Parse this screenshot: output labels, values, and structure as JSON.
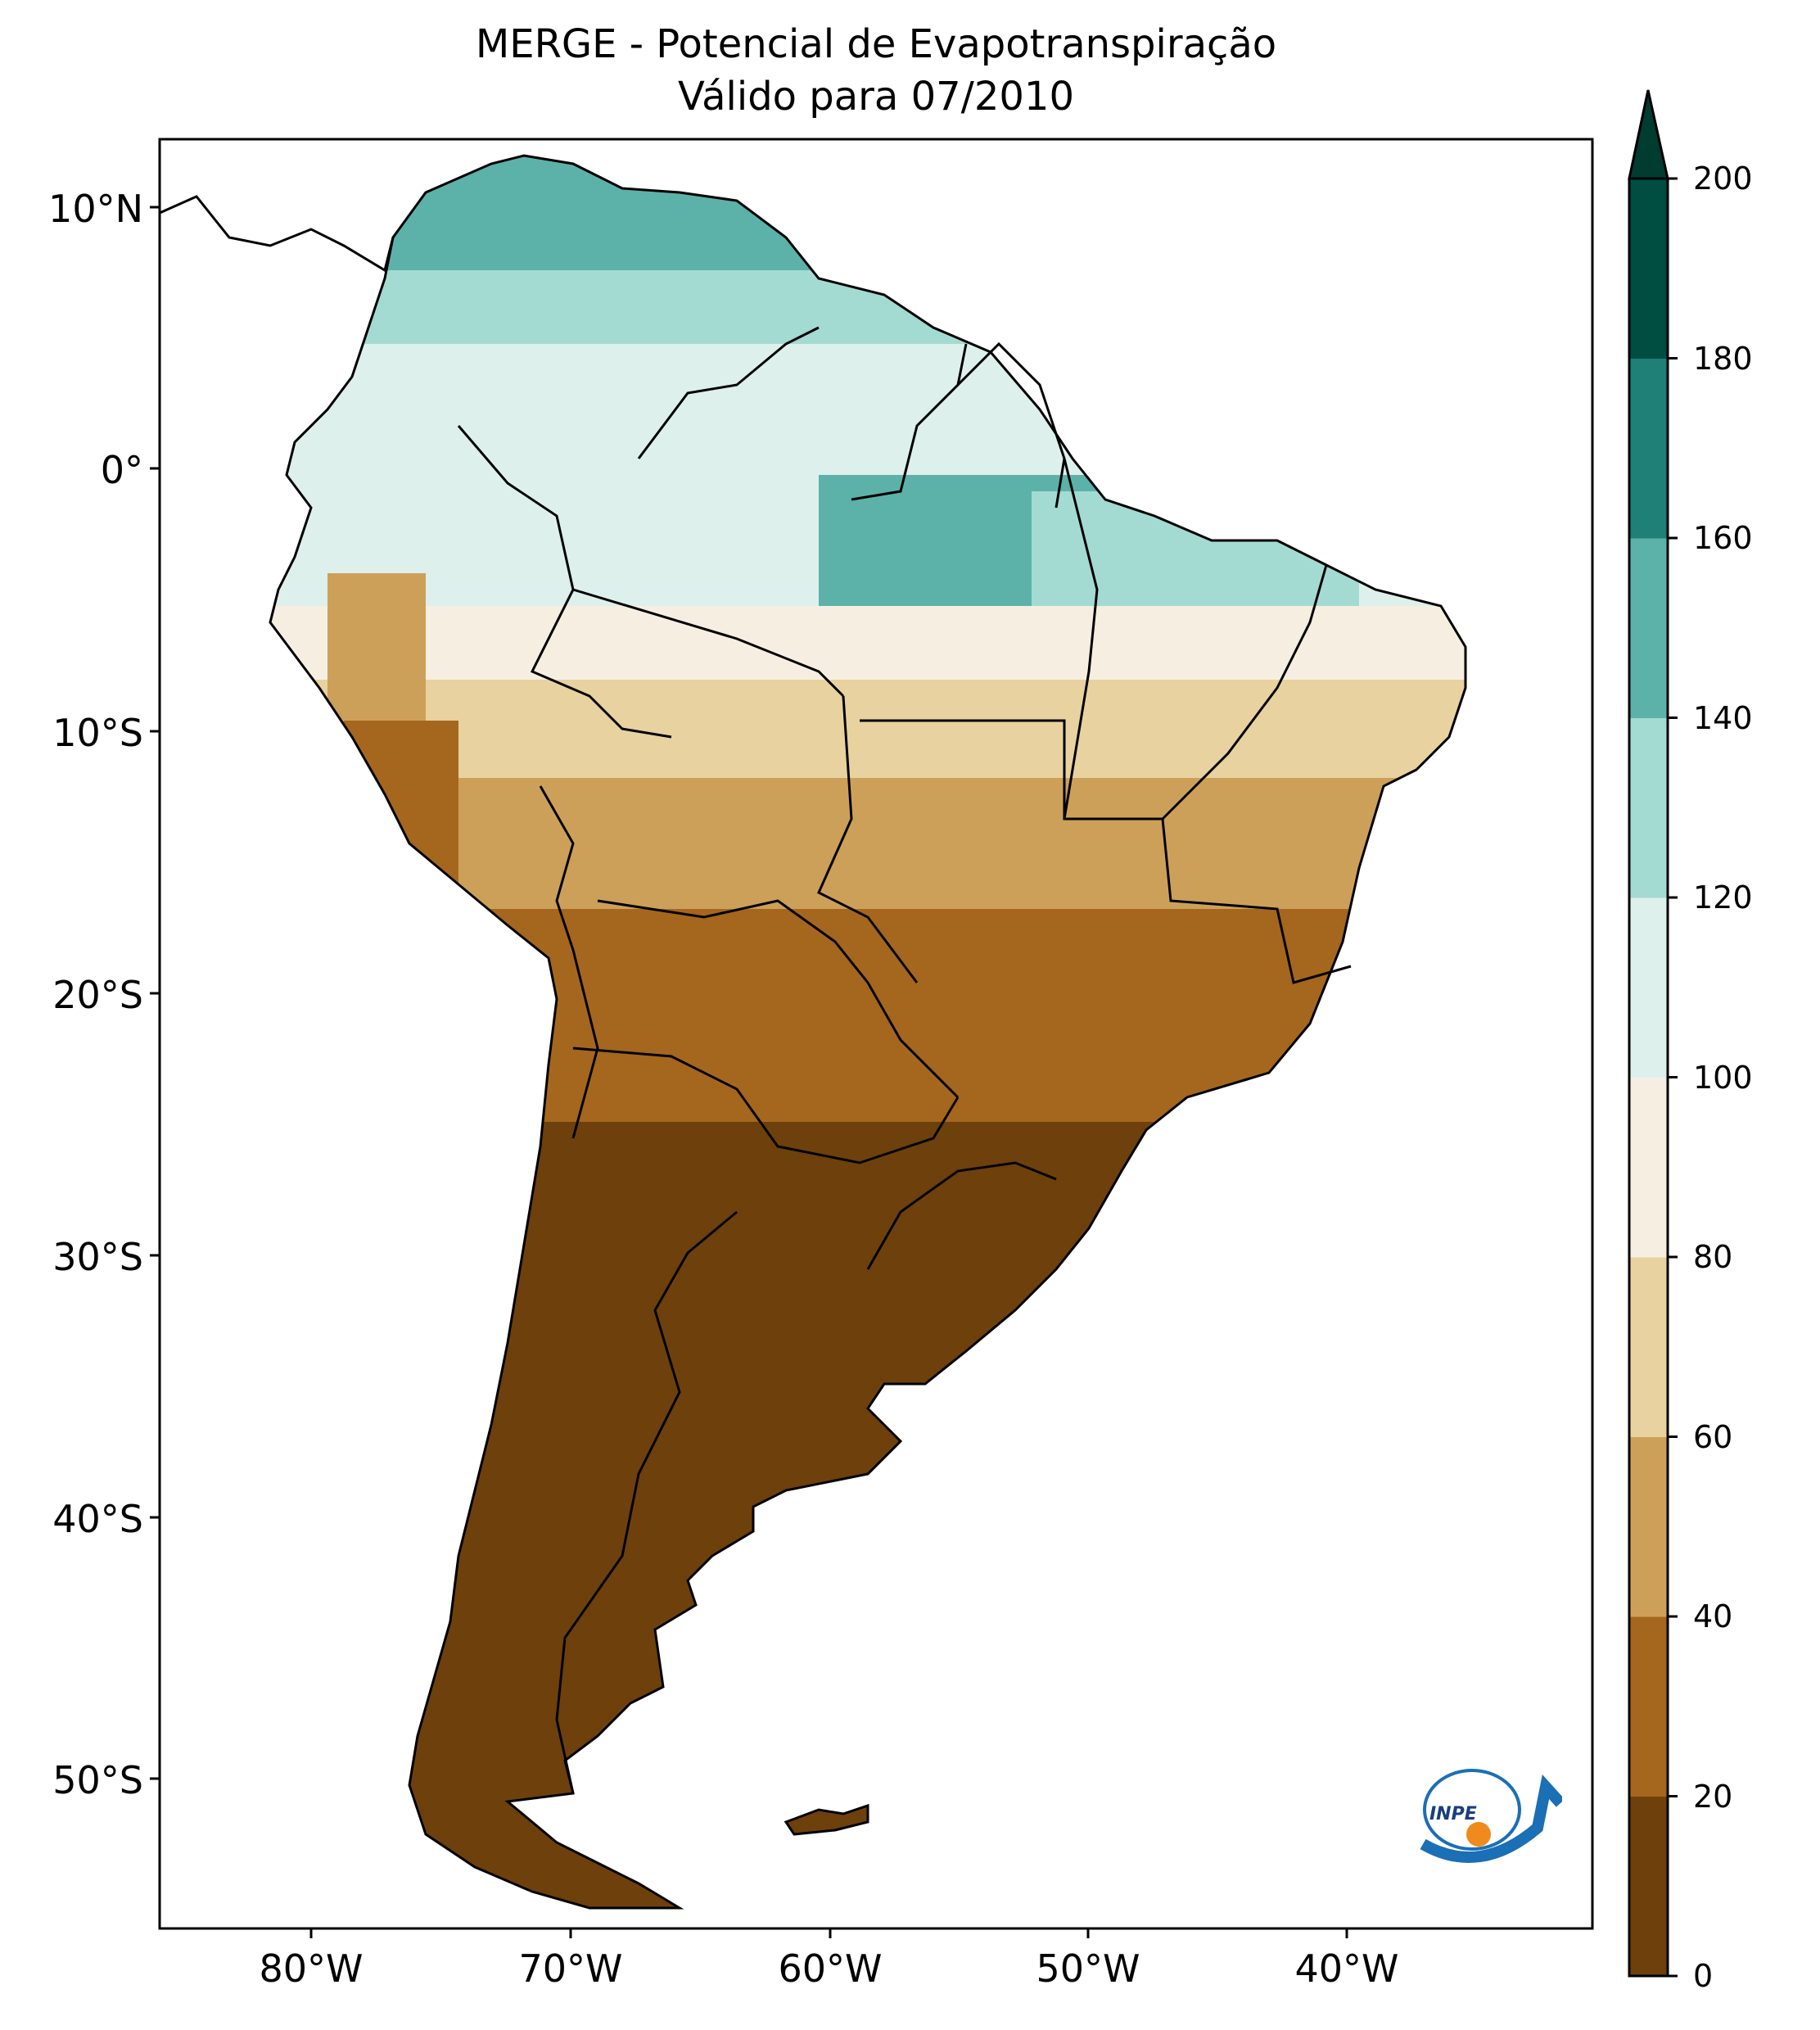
{
  "title": {
    "line1": "MERGE - Potencial de Evapotranspiração",
    "line2": "Válido para 07/2010"
  },
  "map": {
    "lat_ticks": [
      "10°N",
      "0°",
      "10°S",
      "20°S",
      "30°S",
      "40°S",
      "50°S"
    ],
    "lon_ticks": [
      "80°W",
      "70°W",
      "60°W",
      "50°W",
      "40°W"
    ],
    "logo_text": "INPE"
  },
  "colorbar": {
    "ticks": [
      "0",
      "20",
      "40",
      "60",
      "80",
      "100",
      "120",
      "140",
      "160",
      "180",
      "200"
    ],
    "colors": [
      "#6e400c",
      "#a5671e",
      "#cda059",
      "#e8d29f",
      "#f6efe1",
      "#ddf0ec",
      "#a3dbd2",
      "#5cb2a8",
      "#1f8077",
      "#004d41"
    ],
    "extend_color": "#003c30"
  }
}
